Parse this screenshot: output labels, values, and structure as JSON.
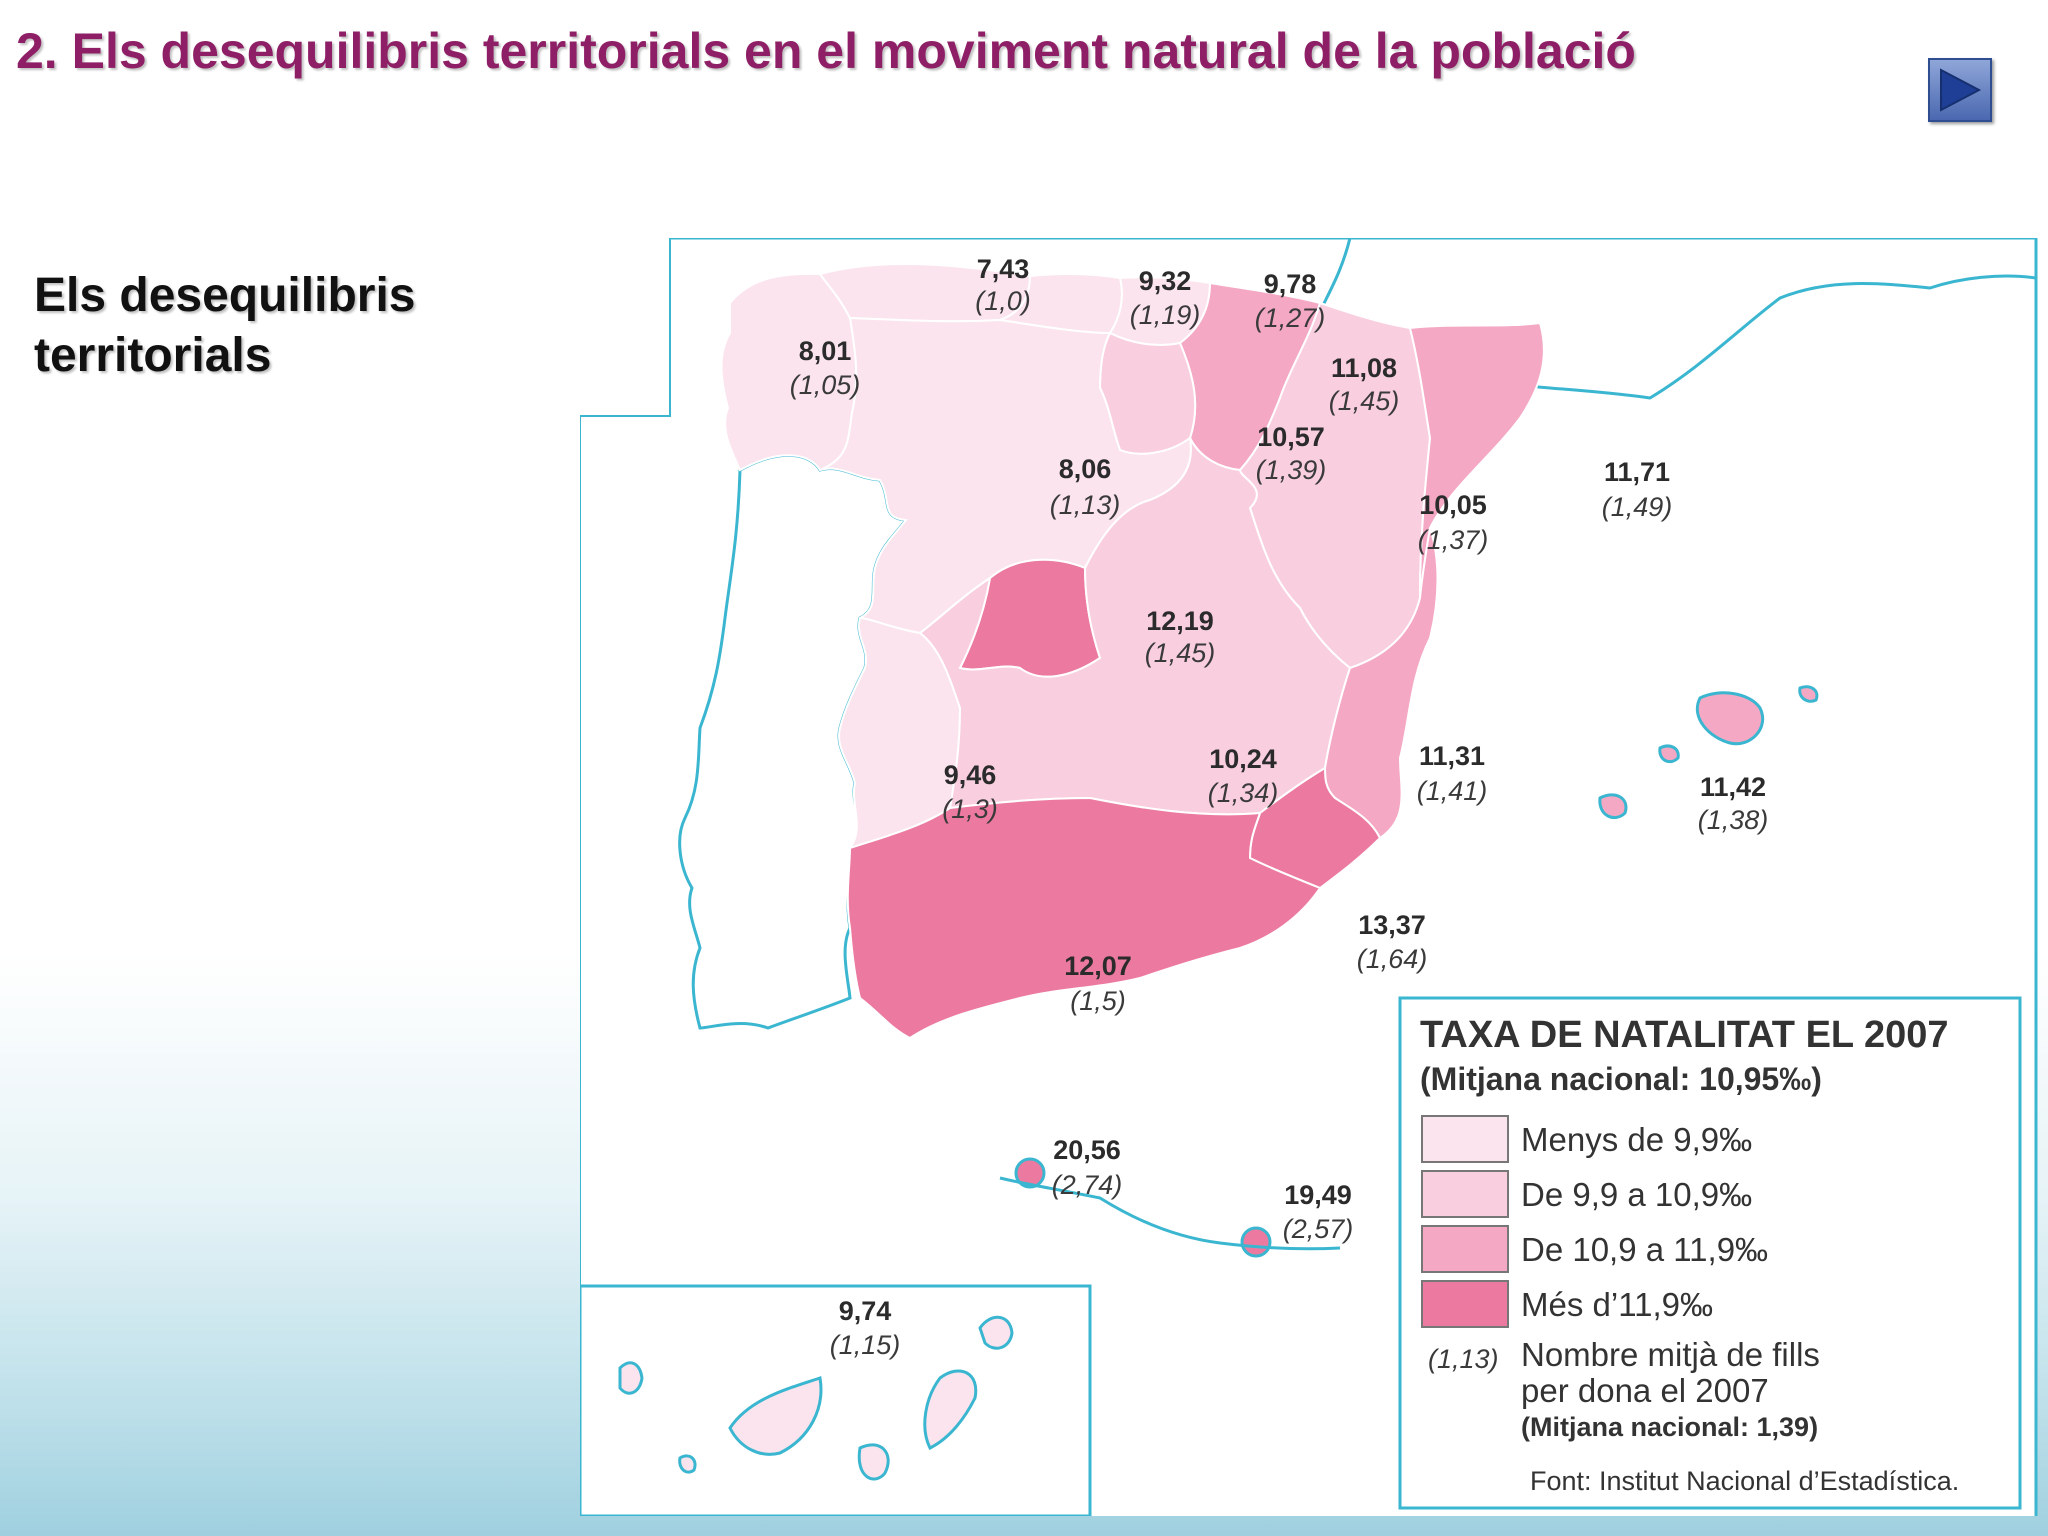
{
  "slide": {
    "title": "2. Els desequilibris territorials en el moviment natural de la població",
    "side_heading": "Els desequilibris territorials",
    "nav_icon": "play-triangle-icon"
  },
  "map": {
    "legend": {
      "title": "TAXA DE NATALITAT EL 2007",
      "subtitle": "(Mitjana nacional: 10,95‰)",
      "classes": [
        {
          "label": "Menys de 9,9‰",
          "color": "#fbe4ee"
        },
        {
          "label": "De 9,9 a 10,9‰",
          "color": "#f9cfe0"
        },
        {
          "label": "De 10,9 a 11,9‰",
          "color": "#f4a8c4"
        },
        {
          "label": "Més d’11,9‰",
          "color": "#ec7aa0"
        }
      ],
      "fills_sample": "(1,13)",
      "fills_line1": "Nombre mitjà de fills",
      "fills_line2": "per dona el 2007",
      "fills_national": "(Mitjana nacional: 1,39)",
      "source": "Font: Institut Nacional d’Estadística."
    },
    "regions": [
      {
        "id": "galicia",
        "rate": "8,01",
        "fills": "(1,05)",
        "class": 0
      },
      {
        "id": "asturias",
        "rate": "7,43",
        "fills": "(1,0)",
        "class": 0
      },
      {
        "id": "cantabria",
        "rate": "9,32",
        "fills": "(1,19)",
        "class": 0
      },
      {
        "id": "pais-basc",
        "rate": "9,78",
        "fills": "(1,27)",
        "class": 0
      },
      {
        "id": "navarra",
        "rate": "11,08",
        "fills": "(1,45)",
        "class": 2
      },
      {
        "id": "la-rioja",
        "rate": "10,57",
        "fills": "(1,39)",
        "class": 1
      },
      {
        "id": "castella-lleo",
        "rate": "8,06",
        "fills": "(1,13)",
        "class": 0
      },
      {
        "id": "arago",
        "rate": "10,05",
        "fills": "(1,37)",
        "class": 1
      },
      {
        "id": "catalunya",
        "rate": "11,71",
        "fills": "(1,49)",
        "class": 2
      },
      {
        "id": "madrid",
        "rate": "12,19",
        "fills": "(1,45)",
        "class": 3
      },
      {
        "id": "extremadura",
        "rate": "9,46",
        "fills": "(1,3)",
        "class": 0
      },
      {
        "id": "castella-la-manxa",
        "rate": "10,24",
        "fills": "(1,34)",
        "class": 1
      },
      {
        "id": "valencia",
        "rate": "11,31",
        "fills": "(1,41)",
        "class": 2
      },
      {
        "id": "balears",
        "rate": "11,42",
        "fills": "(1,38)",
        "class": 2
      },
      {
        "id": "murcia",
        "rate": "13,37",
        "fills": "(1,64)",
        "class": 3
      },
      {
        "id": "andalusia",
        "rate": "12,07",
        "fills": "(1,5)",
        "class": 3
      },
      {
        "id": "ceuta",
        "rate": "20,56",
        "fills": "(2,74)",
        "class": 3
      },
      {
        "id": "melilla",
        "rate": "19,49",
        "fills": "(2,57)",
        "class": 3
      },
      {
        "id": "canaries",
        "rate": "9,74",
        "fills": "(1,15)",
        "class": 0
      }
    ]
  }
}
